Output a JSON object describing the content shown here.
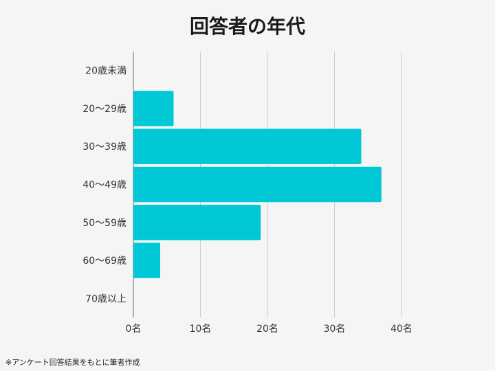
{
  "chart_data": {
    "type": "bar",
    "orientation": "horizontal",
    "title": "回答者の年代",
    "categories": [
      "20歳未満",
      "20〜29歳",
      "30〜39歳",
      "40〜49歳",
      "50〜59歳",
      "60〜69歳",
      "70歳以上"
    ],
    "values": [
      0,
      6,
      34,
      37,
      19,
      4,
      0
    ],
    "xlim": [
      0,
      40
    ],
    "x_ticks": [
      0,
      10,
      20,
      30,
      40
    ],
    "x_tick_labels": [
      "0名",
      "10名",
      "20名",
      "30名",
      "40名"
    ],
    "grid": true,
    "bar_color": "#00c8d7",
    "gridline_color": "#cccccc"
  },
  "footnote": "※アンケート回答結果をもとに筆者作成"
}
